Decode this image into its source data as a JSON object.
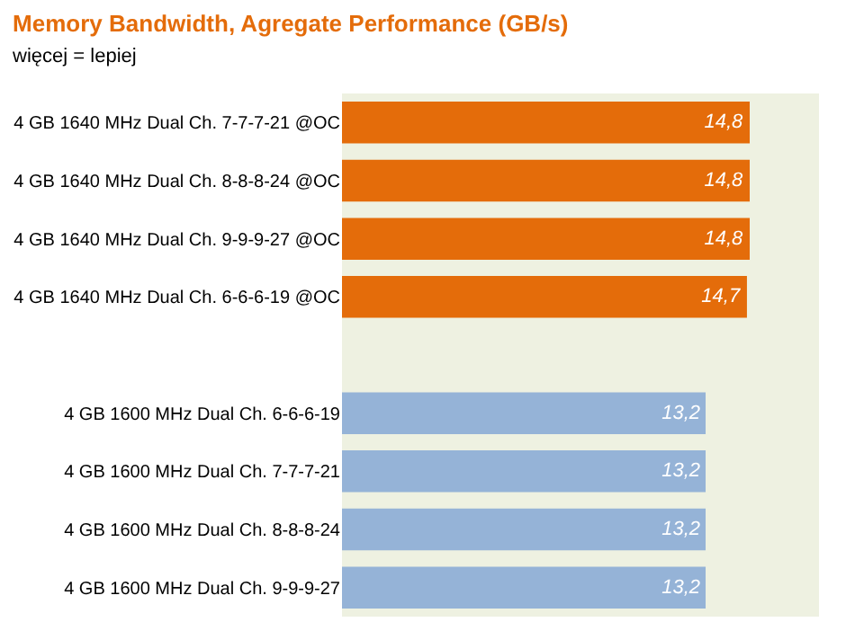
{
  "chart_data": {
    "type": "bar",
    "orientation": "horizontal",
    "title": "Memory Bandwidth, Agregate Performance (GB/s)",
    "subtitle": "więcej = lepiej",
    "categories": [
      "4 GB 1640 MHz Dual Ch. 7-7-7-21 @OC",
      "4 GB 1640 MHz Dual Ch. 8-8-8-24 @OC",
      "4 GB 1640 MHz Dual Ch. 9-9-9-27 @OC",
      "4 GB 1640 MHz Dual Ch. 6-6-6-19 @OC",
      null,
      "4 GB 1600 MHz Dual Ch. 6-6-6-19",
      "4 GB 1600 MHz Dual Ch. 7-7-7-21",
      "4 GB 1600 MHz Dual Ch. 8-8-8-24",
      "4 GB 1600 MHz Dual Ch. 9-9-9-27"
    ],
    "values": [
      14.8,
      14.8,
      14.8,
      14.7,
      null,
      13.2,
      13.2,
      13.2,
      13.2
    ],
    "colors": [
      "#e46c0a",
      "#e46c0a",
      "#e46c0a",
      "#e46c0a",
      "#e46c0a",
      "#95b3d7",
      "#95b3d7",
      "#95b3d7",
      "#95b3d7"
    ],
    "value_labels": [
      "14,8",
      "14,8",
      "14,8",
      "14,7",
      null,
      "13,2",
      "13,2",
      "13,2",
      "13,2"
    ]
  }
}
